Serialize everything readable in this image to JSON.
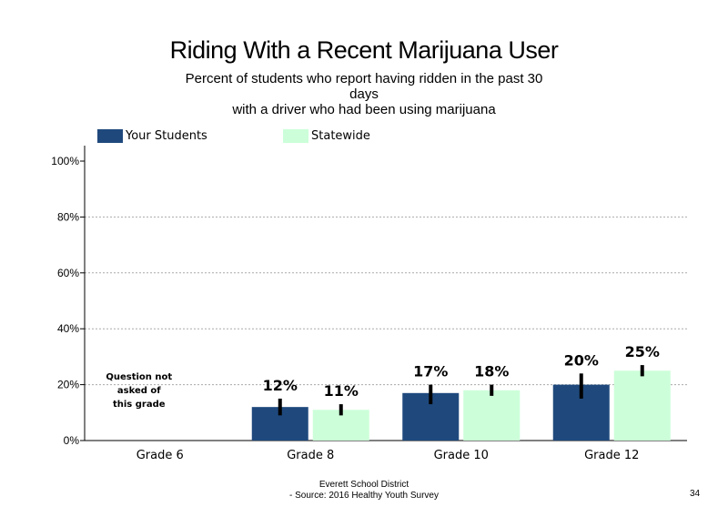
{
  "chart_data": {
    "type": "bar",
    "title": "Riding With a Recent Marijuana User",
    "subtitle_lines": [
      "Percent of students who report having ridden in the past 30",
      "days",
      "with a driver who had been using marijuana"
    ],
    "categories": [
      "Grade 6",
      "Grade 8",
      "Grade 10",
      "Grade 12"
    ],
    "series": [
      {
        "name": "Your Students",
        "color": "#1f497d",
        "values": [
          null,
          12,
          17,
          20
        ],
        "labels": [
          "",
          "12%",
          "17%",
          "20%"
        ],
        "error_low": [
          null,
          9,
          13,
          15
        ],
        "error_high": [
          null,
          15,
          20,
          24
        ]
      },
      {
        "name": "Statewide",
        "color": "#ccffd9",
        "values": [
          null,
          11,
          18,
          25
        ],
        "labels": [
          "",
          "11%",
          "18%",
          "25%"
        ],
        "error_low": [
          null,
          9,
          16,
          23
        ],
        "error_high": [
          null,
          13,
          20,
          27
        ]
      }
    ],
    "yticks": [
      "0%",
      "20%",
      "40%",
      "60%",
      "80%",
      "100%"
    ],
    "ylim": [
      0,
      100
    ],
    "annotations": [
      "Question not",
      "asked of",
      "this grade"
    ],
    "grid": true,
    "legend_position": "top-left"
  },
  "footer": {
    "line1": "Everett School District",
    "line2": "- Source: 2016 Healthy  Youth Survey"
  },
  "page_number": "34"
}
